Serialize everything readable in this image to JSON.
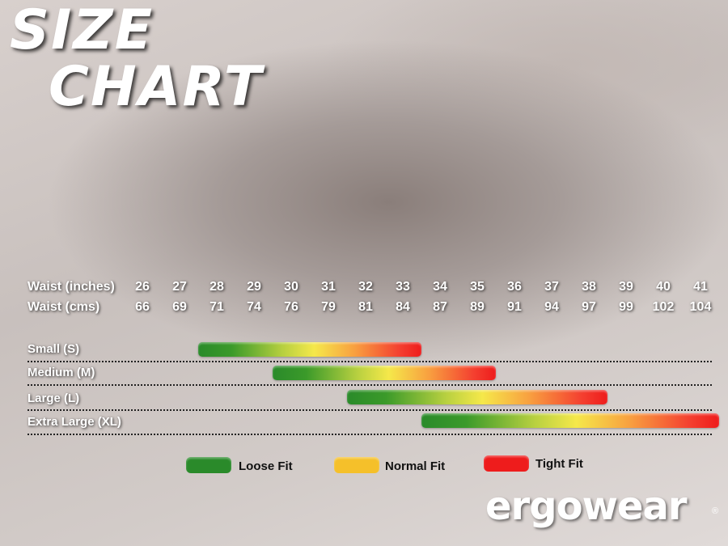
{
  "title_line1": "SIZE",
  "title_line2": "CHART",
  "chart_data": {
    "type": "bar",
    "orientation": "horizontal-range",
    "row_labels": [
      "Waist (inches)",
      "Waist (cms)"
    ],
    "waist_inches": [
      "26",
      "27",
      "28",
      "29",
      "30",
      "31",
      "32",
      "33",
      "34",
      "35",
      "36",
      "37",
      "38",
      "39",
      "40",
      "41"
    ],
    "waist_cms": [
      "66",
      "69",
      "71",
      "74",
      "76",
      "79",
      "81",
      "84",
      "87",
      "89",
      "91",
      "94",
      "97",
      "99",
      "102",
      "104"
    ],
    "categories": [
      "Small (S)",
      "Medium (M)",
      "Large (L)",
      "Extra Large (XL)"
    ],
    "ranges_inches": [
      [
        27.5,
        33.5
      ],
      [
        29.5,
        35.5
      ],
      [
        31.5,
        38.5
      ],
      [
        33.5,
        41.5
      ]
    ],
    "legend": [
      {
        "label": "Loose Fit",
        "color": "#2a8a2a"
      },
      {
        "label": "Normal Fit",
        "color": "#f5c02a"
      },
      {
        "label": "Tight Fit",
        "color": "#ee1c1c"
      }
    ]
  },
  "logo": "ergowear",
  "logo_mark": "®"
}
